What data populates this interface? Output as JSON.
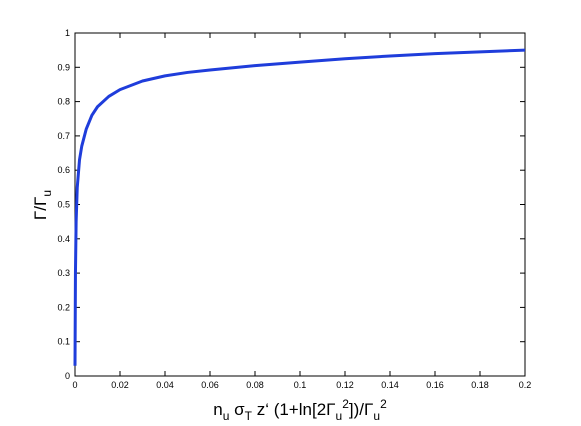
{
  "chart_data": {
    "type": "line",
    "xlabel": "n_u σ_T z‘ (1+ln[2Γ_u^2])/Γ_u^2",
    "ylabel": "Γ/Γ_u",
    "x": [
      0,
      0.0002,
      0.0005,
      0.001,
      0.002,
      0.003,
      0.005,
      0.0075,
      0.01,
      0.015,
      0.02,
      0.03,
      0.04,
      0.05,
      0.06,
      0.08,
      0.1,
      0.12,
      0.14,
      0.16,
      0.18,
      0.2
    ],
    "series": [
      {
        "color": "#1f3ddb",
        "values": [
          0.03,
          0.3,
          0.45,
          0.55,
          0.63,
          0.67,
          0.72,
          0.76,
          0.785,
          0.815,
          0.835,
          0.86,
          0.875,
          0.885,
          0.892,
          0.905,
          0.915,
          0.925,
          0.933,
          0.94,
          0.945,
          0.95
        ]
      }
    ],
    "xlim": [
      0,
      0.2
    ],
    "ylim": [
      0,
      1
    ],
    "xticks": [
      0,
      0.02,
      0.04,
      0.06,
      0.08,
      0.1,
      0.12,
      0.14,
      0.16,
      0.18,
      0.2
    ],
    "yticks": [
      0,
      0.1,
      0.2,
      0.3,
      0.4,
      0.5,
      0.6,
      0.7,
      0.8,
      0.9,
      1
    ],
    "grid": false
  }
}
